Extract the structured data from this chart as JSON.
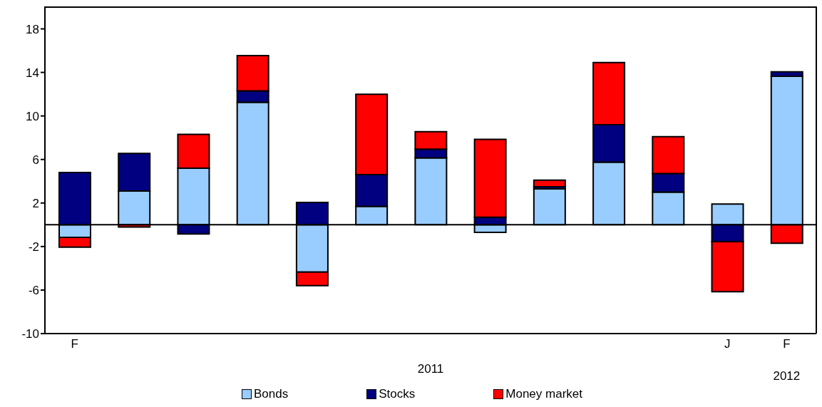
{
  "chart_data": {
    "type": "bar",
    "stacked": true,
    "categories": [
      "F",
      null,
      null,
      null,
      null,
      null,
      null,
      null,
      null,
      null,
      null,
      "J",
      "F"
    ],
    "series": [
      {
        "name": "Bonds",
        "color": "#99ccff",
        "values": [
          -1.15,
          3.1,
          5.2,
          11.25,
          -4.35,
          1.7,
          6.15,
          -0.7,
          3.3,
          5.75,
          3.0,
          1.9,
          13.65
        ]
      },
      {
        "name": "Stocks",
        "color": "#000080",
        "values": [
          4.8,
          3.45,
          -0.85,
          1.05,
          2.05,
          2.9,
          0.8,
          0.7,
          0.2,
          3.45,
          1.7,
          -1.55,
          0.4
        ]
      },
      {
        "name": "Money market",
        "color": "#ff0000",
        "values": [
          -0.9,
          -0.2,
          3.1,
          3.25,
          -1.25,
          7.4,
          1.6,
          7.15,
          0.6,
          5.7,
          3.4,
          -4.6,
          -1.7
        ]
      }
    ],
    "ylim": [
      -10,
      20
    ],
    "yticks": [
      -10,
      -6,
      -2,
      2,
      6,
      10,
      14,
      18
    ],
    "legend": "bottom",
    "annotations": [
      "2011",
      "2012"
    ]
  }
}
